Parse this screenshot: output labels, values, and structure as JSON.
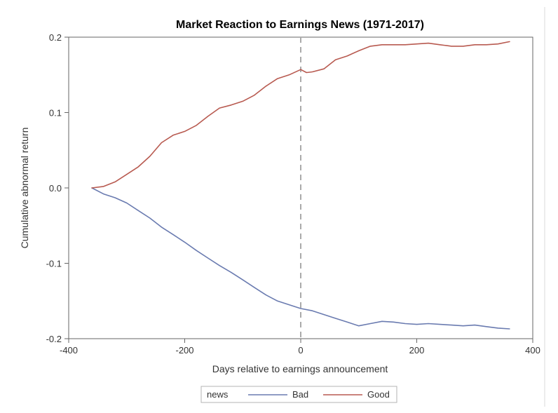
{
  "chart_data": {
    "type": "line",
    "title": "Market Reaction to Earnings News (1971-2017)",
    "xlabel": "Days relative to earnings announcement",
    "ylabel": "Cumulative abnormal return",
    "xlim": [
      -400,
      400
    ],
    "ylim": [
      -0.2,
      0.2
    ],
    "xticks": [
      -400,
      -200,
      0,
      200,
      400
    ],
    "xtick_labels": [
      "-400",
      "-200",
      "0",
      "200",
      "400"
    ],
    "yticks": [
      -0.2,
      -0.1,
      0.0,
      0.1,
      0.2
    ],
    "ytick_labels": [
      "-0.2",
      "-0.1",
      "0.0",
      "0.1",
      "0.2"
    ],
    "reference_line_x": 0,
    "grid": false,
    "legend": {
      "title": "news",
      "position": "bottom-center",
      "entries": [
        "Bad",
        "Good"
      ]
    },
    "series": [
      {
        "name": "Bad",
        "color": "#6a7bb0",
        "x": [
          -360,
          -340,
          -320,
          -300,
          -280,
          -260,
          -240,
          -220,
          -200,
          -180,
          -160,
          -140,
          -120,
          -100,
          -80,
          -60,
          -40,
          -20,
          0,
          20,
          40,
          60,
          80,
          100,
          120,
          140,
          160,
          180,
          200,
          220,
          240,
          260,
          280,
          300,
          320,
          340,
          360
        ],
        "values": [
          0.0,
          -0.008,
          -0.013,
          -0.02,
          -0.03,
          -0.04,
          -0.052,
          -0.062,
          -0.072,
          -0.083,
          -0.093,
          -0.103,
          -0.112,
          -0.122,
          -0.132,
          -0.142,
          -0.15,
          -0.155,
          -0.16,
          -0.163,
          -0.168,
          -0.173,
          -0.178,
          -0.183,
          -0.18,
          -0.177,
          -0.178,
          -0.18,
          -0.181,
          -0.18,
          -0.181,
          -0.182,
          -0.183,
          -0.182,
          -0.184,
          -0.186,
          -0.187
        ]
      },
      {
        "name": "Good",
        "color": "#b85a50",
        "x": [
          -360,
          -340,
          -320,
          -300,
          -280,
          -260,
          -240,
          -220,
          -200,
          -180,
          -160,
          -140,
          -120,
          -100,
          -80,
          -60,
          -40,
          -20,
          0,
          10,
          20,
          40,
          60,
          80,
          100,
          120,
          140,
          160,
          180,
          200,
          220,
          240,
          260,
          280,
          300,
          320,
          340,
          360
        ],
        "values": [
          0.0,
          0.002,
          0.008,
          0.018,
          0.028,
          0.042,
          0.06,
          0.07,
          0.075,
          0.083,
          0.095,
          0.106,
          0.11,
          0.115,
          0.123,
          0.135,
          0.145,
          0.15,
          0.157,
          0.153,
          0.154,
          0.158,
          0.17,
          0.175,
          0.182,
          0.188,
          0.19,
          0.19,
          0.19,
          0.191,
          0.192,
          0.19,
          0.188,
          0.188,
          0.19,
          0.19,
          0.191,
          0.194
        ]
      }
    ]
  }
}
